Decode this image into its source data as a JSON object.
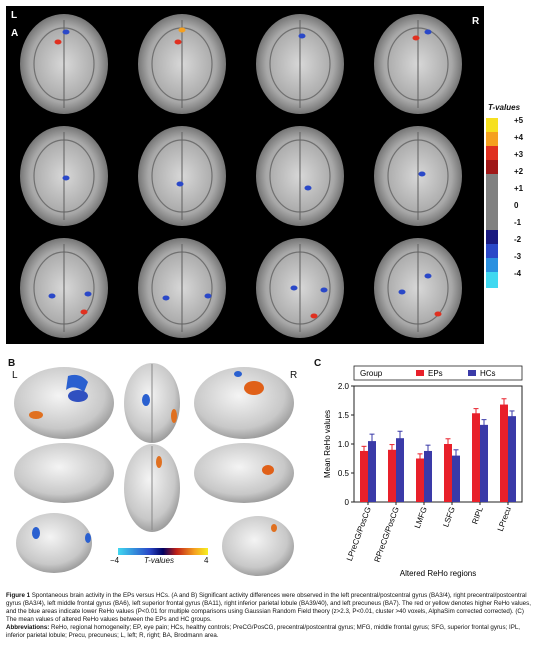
{
  "panel_a": {
    "label": "A",
    "left_marker": "L",
    "right_marker": "R",
    "colorbar_title": "T-values",
    "colorbar_ticks": [
      "+5",
      "+4",
      "+3",
      "+2",
      "+1",
      "0",
      "-1",
      "-2",
      "-3",
      "-4"
    ]
  },
  "panel_b": {
    "label": "B",
    "left_marker": "L",
    "right_marker": "R",
    "colorbar_min": "−4",
    "colorbar_label": "T-values",
    "colorbar_max": "4"
  },
  "panel_c": {
    "label": "C",
    "legend_title": "Group",
    "ylabel": "Mean ReHo values",
    "xlabel": "Altered ReHo regions"
  },
  "chart_data": {
    "type": "bar",
    "categories": [
      "LPreCG/PosCG",
      "RPreCG/PosCG",
      "LMFG",
      "LSFG",
      "RIPL",
      "LPrecu"
    ],
    "series": [
      {
        "name": "EPs",
        "values": [
          0.88,
          0.9,
          0.75,
          1.0,
          1.53,
          1.68
        ],
        "errors": [
          0.08,
          0.09,
          0.08,
          0.09,
          0.08,
          0.1
        ],
        "color": "#e8202a"
      },
      {
        "name": "HCs",
        "values": [
          1.05,
          1.1,
          0.88,
          0.8,
          1.33,
          1.48
        ],
        "errors": [
          0.12,
          0.12,
          0.1,
          0.1,
          0.09,
          0.09
        ],
        "color": "#3a3aa8"
      }
    ],
    "ylim": [
      0,
      2.0
    ],
    "yticks": [
      "0",
      "0.5",
      "1.0",
      "1.5",
      "2.0"
    ]
  },
  "caption": {
    "fig_label": "Figure 1",
    "body": " Spontaneous brain activity in the EPs versus HCs. (A and B) Significant activity differences were observed in the left precentral/postcentral gyrus (BA3/4), right precentral/postcentral gyrus (BA3/4), left middle frontal gyrus (BA6), left superior frontal gyrus (BA11), right inferior parietal lobule (BA39/40), and left precuneus (BA7). The red or yellow denotes higher ReHo values, and the blue areas indicate lower ReHo values (P<0.01 for multiple comparisons using Gaussian Random Field theory (z>2.3, P<0.01, cluster >40 voxels, AlphaSim corrected corrected). (C) The mean values of altered ReHo values between the EPs and HC groups.",
    "abbr_label": "Abbreviations:",
    "abbr_body": " ReHo, regional homogeneity; EP, eye pain; HCs, healthy controls; PreCG/PosCG, precentral/postcentral gyrus; MFG, middle frontal gyrus; SFG, superior frontal gyrus; IPL, inferior parietal lobule; Precu, precuneus; L, left; R, right; BA, Brodmann area."
  }
}
